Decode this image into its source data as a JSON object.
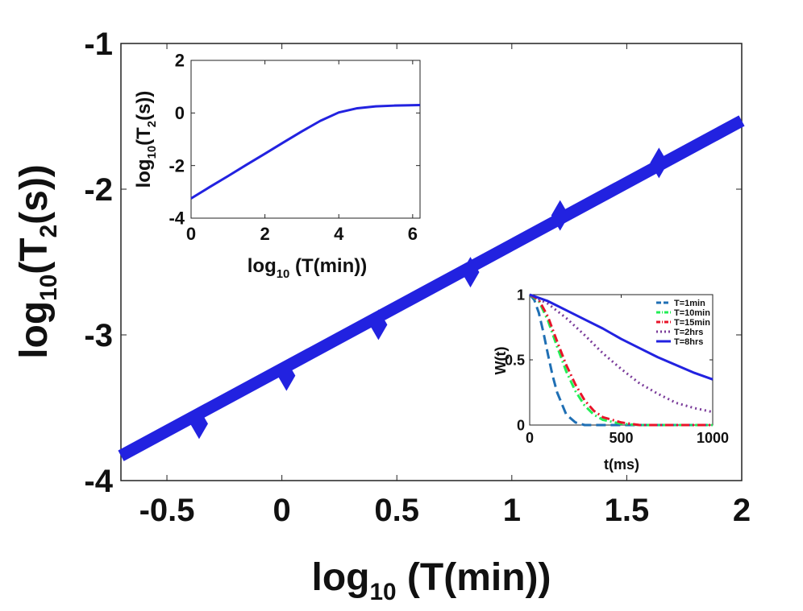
{
  "chart_data": [
    {
      "id": "main",
      "type": "line",
      "xlabel": {
        "base": "log",
        "sub": "10",
        "rest": " (T(min))"
      },
      "ylabel": {
        "base": "log",
        "sub": "10",
        "pre": "(T",
        "sub2": "2",
        "rest": "(s))"
      },
      "xlim": [
        -0.7,
        2.0
      ],
      "ylim": [
        -4,
        -1
      ],
      "xticks": [
        -0.5,
        0,
        0.5,
        1,
        1.5,
        2
      ],
      "xtick_labels": [
        "-0.5",
        "0",
        "0.5",
        "1",
        "1.5",
        "2"
      ],
      "yticks": [
        -4,
        -3,
        -2,
        -1
      ],
      "ytick_labels": [
        "-4",
        "-3",
        "-2",
        "-1"
      ],
      "grid": false,
      "line_color": "#2222e0",
      "series": [
        {
          "line": {
            "x": [
              -0.7,
              2.0
            ],
            "y": [
              -3.83,
              -1.53
            ]
          },
          "markers": {
            "x": [
              -0.36,
              0.02,
              0.42,
              0.82,
              1.21,
              1.64
            ],
            "y": [
              -3.61,
              -3.28,
              -2.93,
              -2.57,
              -2.18,
              -1.82
            ]
          }
        }
      ]
    },
    {
      "id": "inset_top",
      "type": "line",
      "xlabel": {
        "base": "log",
        "sub": "10",
        "rest": " (T(min))"
      },
      "ylabel": {
        "base": "log",
        "sub": "10",
        "pre": "(T",
        "sub2": "2",
        "rest": "(s))"
      },
      "xlim": [
        0,
        6.2
      ],
      "ylim": [
        -4,
        2
      ],
      "xticks": [
        0,
        2,
        4,
        6
      ],
      "xtick_labels": [
        "0",
        "2",
        "4",
        "6"
      ],
      "yticks": [
        -4,
        -2,
        0,
        2
      ],
      "ytick_labels": [
        "-4",
        "-2",
        "0",
        "2"
      ],
      "grid": false,
      "line_color": "#2222e0",
      "series": [
        {
          "x": [
            0,
            0.5,
            1.0,
            1.5,
            2.0,
            2.5,
            3.0,
            3.5,
            4.0,
            4.5,
            5.0,
            5.5,
            6.2
          ],
          "y": [
            -3.25,
            -2.82,
            -2.4,
            -1.97,
            -1.55,
            -1.12,
            -0.7,
            -0.3,
            0.02,
            0.18,
            0.25,
            0.28,
            0.3
          ]
        }
      ]
    },
    {
      "id": "inset_bottom",
      "type": "line",
      "xlabel": "t(ms)",
      "ylabel": "W(t)",
      "xlim": [
        0,
        1000
      ],
      "ylim": [
        0,
        1
      ],
      "xticks": [
        0,
        500,
        1000
      ],
      "xtick_labels": [
        "0",
        "500",
        "1000"
      ],
      "yticks": [
        0,
        0.5,
        1
      ],
      "ytick_labels": [
        "0",
        "0.5",
        "1"
      ],
      "grid": false,
      "legend_position": "top-right",
      "series": [
        {
          "name": "T=1min",
          "color": "#1f6fb4",
          "dash": "dashed",
          "x": [
            0,
            25,
            50,
            75,
            100,
            125,
            150,
            200,
            250,
            300,
            1000
          ],
          "y": [
            1,
            0.96,
            0.86,
            0.71,
            0.54,
            0.38,
            0.25,
            0.08,
            0.02,
            0.0,
            0.0
          ]
        },
        {
          "name": "T=10min",
          "color": "#22ee55",
          "dash": "dashdot",
          "x": [
            0,
            50,
            100,
            150,
            200,
            250,
            300,
            350,
            400,
            500,
            600,
            700,
            1000
          ],
          "y": [
            1,
            0.95,
            0.8,
            0.6,
            0.41,
            0.26,
            0.15,
            0.08,
            0.04,
            0.01,
            0.0,
            0.0,
            0.0
          ]
        },
        {
          "name": "T=15min",
          "color": "#e8142a",
          "dash": "dashdot",
          "x": [
            0,
            50,
            100,
            150,
            200,
            250,
            300,
            350,
            400,
            500,
            600,
            700,
            1000
          ],
          "y": [
            1,
            0.96,
            0.83,
            0.64,
            0.46,
            0.31,
            0.19,
            0.11,
            0.06,
            0.02,
            0.0,
            0.0,
            0.0
          ]
        },
        {
          "name": "T=2hrs",
          "color": "#7a3b9a",
          "dash": "dotted",
          "x": [
            0,
            100,
            200,
            300,
            400,
            500,
            600,
            700,
            800,
            900,
            1000
          ],
          "y": [
            1,
            0.93,
            0.82,
            0.69,
            0.55,
            0.43,
            0.32,
            0.24,
            0.17,
            0.13,
            0.1
          ]
        },
        {
          "name": "T=8hrs",
          "color": "#2222e0",
          "dash": "solid",
          "x": [
            0,
            100,
            200,
            300,
            400,
            500,
            600,
            700,
            800,
            900,
            1000
          ],
          "y": [
            1,
            0.95,
            0.88,
            0.81,
            0.74,
            0.66,
            0.59,
            0.52,
            0.46,
            0.4,
            0.35
          ]
        }
      ]
    }
  ]
}
